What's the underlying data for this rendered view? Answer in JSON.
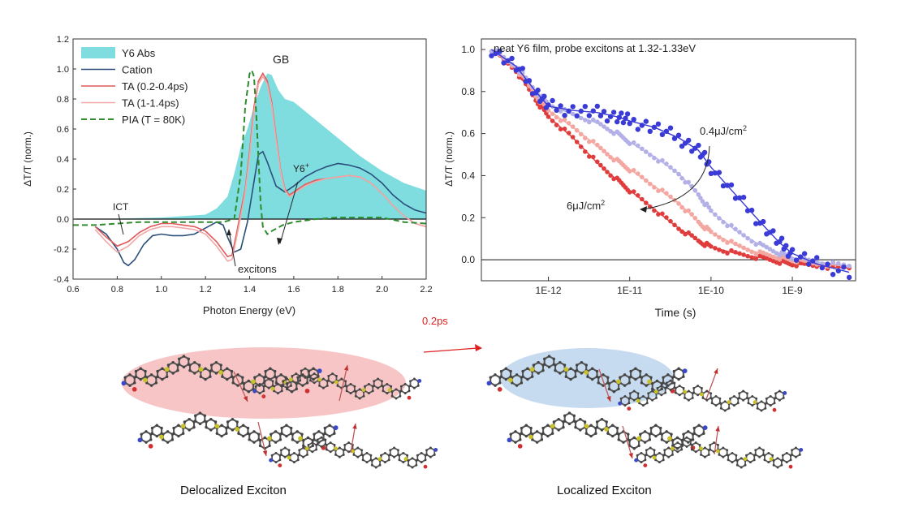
{
  "chart_data": [
    {
      "type": "line",
      "title": "",
      "xlabel": "Photon Energy (eV)",
      "ylabel": "ΔT/T (norm.)",
      "xlim": [
        0.6,
        2.2
      ],
      "ylim": [
        -0.4,
        1.2
      ],
      "xticks": [
        "0.6",
        "0.8",
        "1.0",
        "1.2",
        "1.4",
        "1.6",
        "1.8",
        "2.0",
        "2.2"
      ],
      "yticks": [
        "-0.4",
        "-0.2",
        "0.0",
        "0.2",
        "0.4",
        "0.6",
        "0.8",
        "1.0",
        "1.2"
      ],
      "legend_position": "top-left",
      "annotations": {
        "gb": "GB",
        "y6plus": "Y6",
        "y6plus_sup": "+",
        "ict": "ICT",
        "excitons": "excitons"
      },
      "series": [
        {
          "name": "Y6 Abs",
          "style": "area",
          "color": "#7fdde0",
          "x": [
            0.7,
            1.0,
            1.2,
            1.25,
            1.3,
            1.33,
            1.36,
            1.39,
            1.42,
            1.45,
            1.48,
            1.5,
            1.53,
            1.56,
            1.6,
            1.65,
            1.7,
            1.8,
            1.9,
            2.0,
            2.1,
            2.2
          ],
          "y": [
            0.0,
            0.01,
            0.03,
            0.07,
            0.15,
            0.3,
            0.48,
            0.6,
            0.75,
            0.88,
            0.97,
            0.96,
            0.86,
            0.8,
            0.78,
            0.72,
            0.66,
            0.54,
            0.42,
            0.32,
            0.24,
            0.19
          ]
        },
        {
          "name": "Cation",
          "style": "solid",
          "color": "#2b4f7a",
          "x": [
            0.7,
            0.75,
            0.8,
            0.83,
            0.85,
            0.88,
            0.92,
            0.96,
            1.0,
            1.05,
            1.1,
            1.15,
            1.2,
            1.25,
            1.28,
            1.3,
            1.33,
            1.36,
            1.39,
            1.42,
            1.44,
            1.46,
            1.48,
            1.52,
            1.56,
            1.6,
            1.65,
            1.7,
            1.75,
            1.8,
            1.85,
            1.9,
            1.95,
            2.0,
            2.05,
            2.1,
            2.15,
            2.2
          ],
          "y": [
            -0.05,
            -0.1,
            -0.2,
            -0.29,
            -0.31,
            -0.27,
            -0.17,
            -0.11,
            -0.1,
            -0.11,
            -0.11,
            -0.1,
            -0.06,
            -0.02,
            -0.04,
            -0.12,
            -0.22,
            -0.2,
            -0.02,
            0.25,
            0.43,
            0.45,
            0.38,
            0.22,
            0.18,
            0.22,
            0.28,
            0.32,
            0.35,
            0.37,
            0.36,
            0.34,
            0.3,
            0.24,
            0.16,
            0.1,
            0.06,
            0.04
          ]
        },
        {
          "name": "TA (0.2-0.4ps)",
          "style": "solid",
          "color": "#e05a5a",
          "x": [
            0.7,
            0.75,
            0.8,
            0.85,
            0.9,
            0.95,
            1.0,
            1.05,
            1.1,
            1.15,
            1.2,
            1.25,
            1.3,
            1.32,
            1.34,
            1.36,
            1.38,
            1.4,
            1.42,
            1.44,
            1.46,
            1.48,
            1.5,
            1.52,
            1.54,
            1.56,
            1.58,
            1.6,
            1.65,
            1.7,
            1.75,
            1.8,
            1.85,
            1.9,
            1.95,
            2.0,
            2.05,
            2.1,
            2.15,
            2.2
          ],
          "y": [
            -0.05,
            -0.12,
            -0.18,
            -0.15,
            -0.09,
            -0.05,
            -0.03,
            -0.03,
            -0.04,
            -0.05,
            -0.08,
            -0.15,
            -0.25,
            -0.24,
            -0.1,
            0.05,
            0.2,
            0.45,
            0.75,
            0.92,
            0.97,
            0.92,
            0.78,
            0.55,
            0.33,
            0.2,
            0.16,
            0.18,
            0.23,
            0.26,
            0.27,
            0.28,
            0.29,
            0.28,
            0.24,
            0.17,
            0.09,
            0.02,
            -0.03,
            -0.05
          ]
        },
        {
          "name": "TA (1-1.4ps)",
          "style": "solid",
          "color": "#f2a8a8",
          "x": [
            0.7,
            0.75,
            0.8,
            0.85,
            0.9,
            0.95,
            1.0,
            1.05,
            1.1,
            1.15,
            1.2,
            1.25,
            1.3,
            1.32,
            1.34,
            1.36,
            1.38,
            1.4,
            1.42,
            1.44,
            1.46,
            1.48,
            1.5,
            1.52,
            1.54,
            1.56,
            1.58,
            1.6,
            1.65,
            1.7,
            1.75,
            1.8,
            1.85,
            1.9,
            1.95,
            2.0,
            2.05,
            2.1,
            2.15,
            2.2
          ],
          "y": [
            -0.07,
            -0.15,
            -0.22,
            -0.18,
            -0.11,
            -0.07,
            -0.05,
            -0.05,
            -0.06,
            -0.07,
            -0.1,
            -0.18,
            -0.28,
            -0.27,
            -0.13,
            0.02,
            0.18,
            0.42,
            0.72,
            0.9,
            0.95,
            0.9,
            0.76,
            0.53,
            0.32,
            0.19,
            0.15,
            0.17,
            0.22,
            0.25,
            0.27,
            0.28,
            0.29,
            0.28,
            0.24,
            0.17,
            0.09,
            0.02,
            -0.03,
            -0.05
          ]
        },
        {
          "name": "PIA (T = 80K)",
          "style": "dashed",
          "color": "#2e8b2e",
          "x": [
            0.6,
            0.7,
            0.8,
            0.9,
            1.0,
            1.1,
            1.2,
            1.28,
            1.33,
            1.36,
            1.38,
            1.4,
            1.41,
            1.42,
            1.43,
            1.44,
            1.45,
            1.46,
            1.48,
            1.5,
            1.55,
            1.6,
            1.7,
            1.8,
            1.9,
            2.0,
            2.1,
            2.2
          ],
          "y": [
            -0.04,
            -0.04,
            -0.03,
            -0.02,
            -0.02,
            -0.02,
            -0.02,
            -0.02,
            0.0,
            0.3,
            0.75,
            0.97,
            0.99,
            0.95,
            0.7,
            0.4,
            0.1,
            -0.05,
            -0.1,
            -0.08,
            -0.04,
            -0.02,
            0.0,
            0.01,
            0.01,
            0.01,
            -0.02,
            -0.03
          ]
        }
      ]
    },
    {
      "type": "scatter",
      "title": "neat Y6 film, probe excitons at 1.32-1.33eV",
      "xlabel": "Time (s)",
      "ylabel": "ΔT/T (norm.)",
      "xscale": "log",
      "xlim": [
        1.5e-13,
        6e-09
      ],
      "ylim": [
        -0.1,
        1.05
      ],
      "xticks": [
        "1E-12",
        "1E-11",
        "1E-10",
        "1E-9"
      ],
      "yticks": [
        "0.0",
        "0.2",
        "0.4",
        "0.6",
        "0.8",
        "1.0"
      ],
      "annotations": {
        "high_fluence": "0.4μJ/cm",
        "low_fluence": "6μJ/cm",
        "unit_sup": "2"
      },
      "series": [
        {
          "color": "#e03c3c",
          "x": [
            2e-13,
            4e-13,
            7e-13,
            1e-12,
            2e-12,
            4e-12,
            7e-12,
            1e-11,
            2e-11,
            4e-11,
            7e-11,
            1e-10,
            2e-10,
            4e-10,
            7e-10,
            1e-09,
            2e-09,
            5e-09
          ],
          "y": [
            1.0,
            0.9,
            0.76,
            0.68,
            0.58,
            0.46,
            0.38,
            0.33,
            0.24,
            0.15,
            0.09,
            0.06,
            0.03,
            0.01,
            -0.01,
            -0.02,
            -0.03,
            -0.04
          ]
        },
        {
          "color": "#f4a6a0",
          "x": [
            2e-13,
            4e-13,
            7e-13,
            1e-12,
            2e-12,
            4e-12,
            7e-12,
            1e-11,
            2e-11,
            4e-11,
            7e-11,
            1e-10,
            2e-10,
            4e-10,
            7e-10,
            1e-09,
            2e-09,
            5e-09
          ],
          "y": [
            1.0,
            0.91,
            0.78,
            0.71,
            0.63,
            0.54,
            0.47,
            0.43,
            0.35,
            0.27,
            0.18,
            0.13,
            0.07,
            0.03,
            0.01,
            0.0,
            -0.02,
            -0.03
          ]
        },
        {
          "color": "#b3b0e8",
          "x": [
            2e-13,
            4e-13,
            7e-13,
            1e-12,
            2e-12,
            4e-12,
            7e-12,
            1e-11,
            2e-11,
            4e-11,
            7e-11,
            1e-10,
            2e-10,
            4e-10,
            7e-10,
            1e-09,
            2e-09,
            5e-09
          ],
          "y": [
            1.0,
            0.92,
            0.8,
            0.74,
            0.69,
            0.65,
            0.6,
            0.56,
            0.49,
            0.41,
            0.31,
            0.23,
            0.14,
            0.07,
            0.03,
            0.01,
            -0.01,
            -0.03
          ]
        },
        {
          "color": "#3a3ad6",
          "x": [
            2e-13,
            4e-13,
            7e-13,
            1e-12,
            2e-12,
            4e-12,
            7e-12,
            1e-11,
            2e-11,
            4e-11,
            7e-11,
            1e-10,
            2e-10,
            4e-10,
            7e-10,
            1e-09,
            2e-09,
            5e-09
          ],
          "y": [
            1.0,
            0.92,
            0.8,
            0.73,
            0.71,
            0.7,
            0.68,
            0.66,
            0.63,
            0.58,
            0.52,
            0.44,
            0.31,
            0.18,
            0.08,
            0.03,
            -0.02,
            -0.06
          ]
        }
      ]
    }
  ],
  "arrow_label": "0.2ps",
  "captions": {
    "left": "Delocalized Exciton",
    "right": "Localized Exciton"
  }
}
